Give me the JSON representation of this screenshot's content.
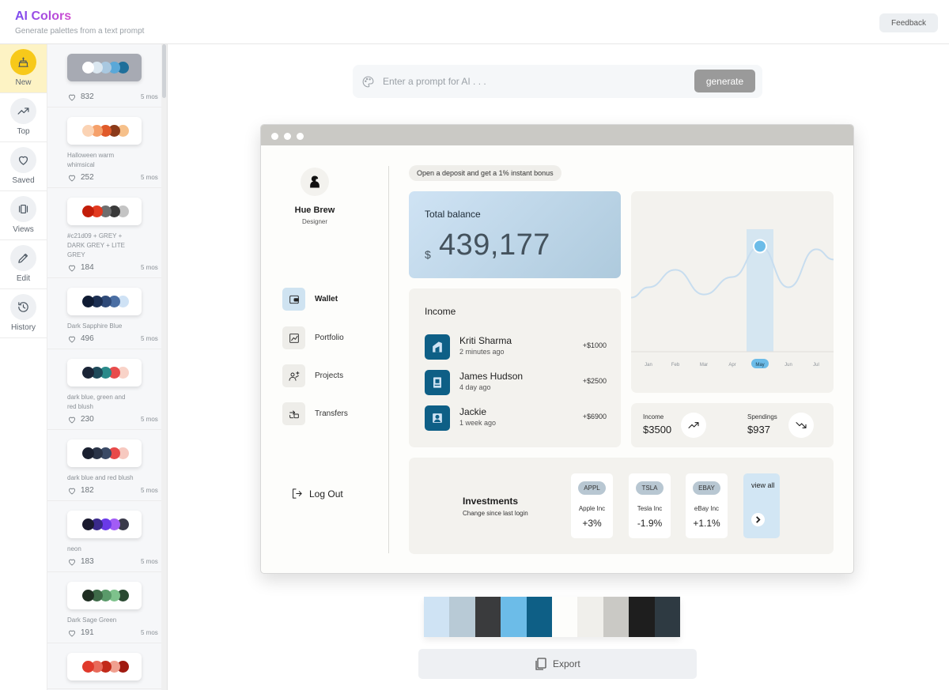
{
  "app": {
    "title": "AI Colors",
    "subtitle": "Generate palettes from a text prompt",
    "feedback_label": "Feedback"
  },
  "nav": [
    {
      "label": "New",
      "icon": "cake-icon",
      "active": true
    },
    {
      "label": "Top",
      "icon": "trending-up-icon",
      "active": false
    },
    {
      "label": "Saved",
      "icon": "heart-icon",
      "active": false
    },
    {
      "label": "Views",
      "icon": "views-icon",
      "active": false
    },
    {
      "label": "Edit",
      "icon": "pencil-icon",
      "active": false
    },
    {
      "label": "History",
      "icon": "history-icon",
      "active": false
    }
  ],
  "palettes": [
    {
      "name": "",
      "likes": "832",
      "date": "5 mos",
      "selected": true,
      "colors": [
        "#ffffff",
        "#dbe7f0",
        "#a9c8e0",
        "#5aa8d8",
        "#1f6f9a"
      ]
    },
    {
      "name": "Halloween warm whimsical",
      "likes": "252",
      "date": "5 mos",
      "selected": false,
      "colors": [
        "#fbd3b4",
        "#f5a06a",
        "#e05a2a",
        "#8b3a1a",
        "#f6c08a"
      ]
    },
    {
      "name": "#c21d09 + GREY + DARK GREY + LITE GREY",
      "likes": "184",
      "date": "5 mos",
      "selected": false,
      "colors": [
        "#c21d09",
        "#e23a20",
        "#6e6e6e",
        "#3a3a3a",
        "#c4c4c4"
      ]
    },
    {
      "name": "Dark Sapphire Blue",
      "likes": "496",
      "date": "5 mos",
      "selected": false,
      "colors": [
        "#0f1b33",
        "#1c2f52",
        "#2f4a78",
        "#4a6ea3",
        "#cfe2f5"
      ]
    },
    {
      "name": "dark blue, green and red blush",
      "likes": "230",
      "date": "5 mos",
      "selected": false,
      "colors": [
        "#1a2436",
        "#1f4a5a",
        "#2a8a8a",
        "#e84c4c",
        "#f9d3c8"
      ]
    },
    {
      "name": "dark blue and red blush",
      "likes": "182",
      "date": "5 mos",
      "selected": false,
      "colors": [
        "#1a2030",
        "#2a3448",
        "#3a4a66",
        "#e84a4a",
        "#f7c9c0"
      ]
    },
    {
      "name": "neon",
      "likes": "183",
      "date": "5 mos",
      "selected": false,
      "colors": [
        "#1a1a2e",
        "#3a2a8a",
        "#6a3ae8",
        "#a25cf5",
        "#3a3a4a"
      ]
    },
    {
      "name": "Dark Sage Green",
      "likes": "191",
      "date": "5 mos",
      "selected": false,
      "colors": [
        "#1f2e22",
        "#3e6a48",
        "#5a9a6a",
        "#7ec28c",
        "#2a4a32"
      ]
    },
    {
      "name": "",
      "likes": "",
      "date": "",
      "selected": false,
      "colors": [
        "#e0392b",
        "#e86a5a",
        "#c22a1a",
        "#f0a090",
        "#a01a10"
      ]
    }
  ],
  "prompt": {
    "placeholder": "Enter a prompt for AI . . .",
    "generate_label": "generate"
  },
  "preview": {
    "user": {
      "name": "Hue Brew",
      "role": "Designer"
    },
    "menu": [
      {
        "label": "Wallet",
        "icon": "wallet-icon",
        "active": true
      },
      {
        "label": "Portfolio",
        "icon": "portfolio-chart-icon",
        "active": false
      },
      {
        "label": "Projects",
        "icon": "projects-icon",
        "active": false
      },
      {
        "label": "Transfers",
        "icon": "transfers-icon",
        "active": false
      }
    ],
    "logout_label": "Log Out",
    "promo": "Open a deposit and get a 1% instant bonus",
    "balance": {
      "label": "Total balance",
      "currency": "$",
      "value": "439,177"
    },
    "chart": {
      "months": [
        "Jan",
        "Feb",
        "Mar",
        "Apr",
        "May",
        "Jun",
        "Jul"
      ],
      "selected": "May",
      "values": [
        0.45,
        0.62,
        0.38,
        0.55,
        0.85,
        0.45,
        0.82
      ]
    },
    "income": {
      "title": "Income",
      "rows": [
        {
          "name": "Kriti Sharma",
          "time": "2 minutes ago",
          "amount": "+$1000"
        },
        {
          "name": "James Hudson",
          "time": "4 day ago",
          "amount": "+$2500"
        },
        {
          "name": "Jackie",
          "time": "1 week ago",
          "amount": "+$6900"
        }
      ]
    },
    "stats": {
      "income_label": "Income",
      "income_value": "$3500",
      "spend_label": "Spendings",
      "spend_value": "$937"
    },
    "investments": {
      "title": "Investments",
      "subtitle": "Change since last login",
      "stocks": [
        {
          "ticker": "APPL",
          "name": "Apple Inc",
          "change": "+3%"
        },
        {
          "ticker": "TSLA",
          "name": "Tesla Inc",
          "change": "-1.9%"
        },
        {
          "ticker": "EBAY",
          "name": "eBay Inc",
          "change": "+1.1%"
        }
      ],
      "view_all_label": "view all"
    }
  },
  "swatches": [
    "#cfe3f4",
    "#b8cad6",
    "#3a3b3d",
    "#6cbce8",
    "#0e5f86",
    "#fdfdfb",
    "#f0efeb",
    "#cac9c5",
    "#1e1e1e",
    "#2e3a42"
  ],
  "export_label": "Export"
}
